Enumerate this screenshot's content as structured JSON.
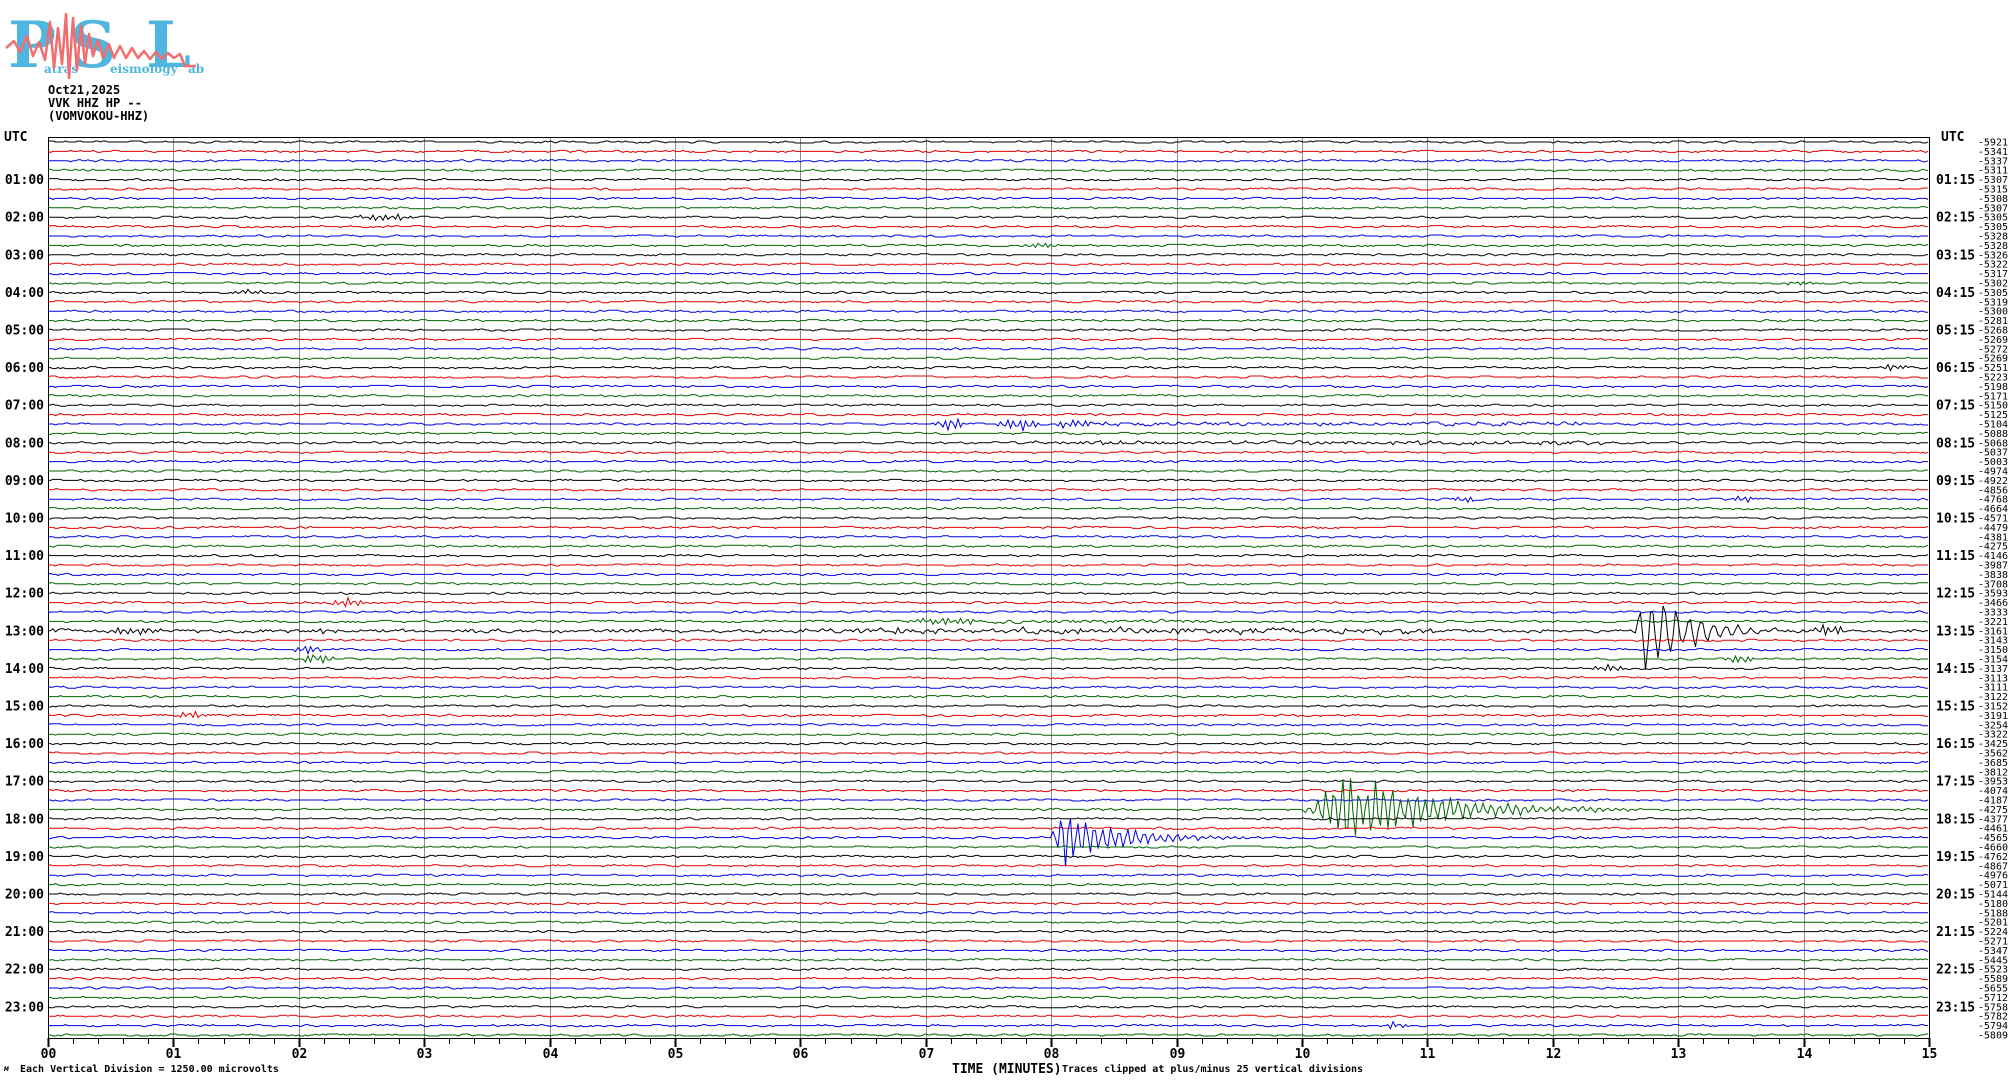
{
  "logo": {
    "p": "P",
    "p_suffix": "atras",
    "s": "S",
    "s_suffix": "eismology",
    "l": "L",
    "l_suffix": "ab"
  },
  "header": {
    "date": "Oct21,2025",
    "station": "VVK HHZ HP --",
    "station_name": "(VOMVOKOU-HHZ)"
  },
  "axes": {
    "utc": "UTC",
    "xlabel": "TIME (MINUTES)",
    "x_tick_labels": [
      "00",
      "01",
      "02",
      "03",
      "04",
      "05",
      "06",
      "07",
      "08",
      "09",
      "10",
      "11",
      "12",
      "13",
      "14",
      "15"
    ],
    "left_hour_labels": [
      "01:00",
      "02:00",
      "03:00",
      "04:00",
      "05:00",
      "06:00",
      "07:00",
      "08:00",
      "09:00",
      "10:00",
      "11:00",
      "12:00",
      "13:00",
      "14:00",
      "15:00",
      "16:00",
      "17:00",
      "18:00",
      "19:00",
      "20:00",
      "21:00",
      "22:00",
      "23:00"
    ],
    "right_hour_labels": [
      "01:15",
      "02:15",
      "03:15",
      "04:15",
      "05:15",
      "06:15",
      "07:15",
      "08:15",
      "09:15",
      "10:15",
      "11:15",
      "12:15",
      "13:15",
      "14:15",
      "15:15",
      "16:15",
      "17:15",
      "18:15",
      "19:15",
      "20:15",
      "21:15",
      "22:15",
      "23:15"
    ]
  },
  "footer": {
    "scale_note": "Each Vertical Division = 1250.00 microvolts",
    "clip_note": "Traces clipped at plus/minus 25 vertical divisions",
    "corner_mark": "м"
  },
  "chart_data": {
    "type": "line",
    "subtype": "helicorder",
    "title": "VVK HHZ HP -- (VOMVOKOU-HHZ) Oct21,2025",
    "xlabel": "TIME (MINUTES)",
    "x_range": [
      0,
      15
    ],
    "lines": 96,
    "minutes_per_line": 15,
    "line_start_utc_first": "00:00",
    "trace_colors_cycle": [
      "#000000",
      "#e60000",
      "#0000e6",
      "#006400"
    ],
    "grid_color": "#8c8c8c",
    "vertical_division_microvolts": 1250.0,
    "clip_divisions": 25,
    "offsets_microvolts": [
      -5921,
      -5341,
      -5337,
      -5311,
      -5307,
      -5315,
      -5308,
      -5307,
      -5305,
      -5305,
      -5328,
      -5328,
      -5326,
      -5322,
      -5317,
      -5302,
      -5305,
      -5319,
      -5300,
      -5281,
      -5268,
      -5269,
      -5272,
      -5269,
      -5251,
      -5223,
      -5198,
      -5171,
      -5150,
      -5125,
      -5104,
      -5088,
      -5068,
      -5037,
      -5003,
      -4974,
      -4922,
      -4856,
      -4768,
      -4664,
      -4571,
      -4479,
      -4381,
      -4275,
      -4146,
      -3987,
      -3838,
      -3708,
      -3593,
      -3466,
      -3333,
      -3221,
      -3161,
      -3143,
      -3150,
      -3154,
      -3137,
      -3113,
      -3111,
      -3122,
      -3152,
      -3191,
      -3254,
      -3322,
      -3425,
      -3562,
      -3685,
      -3812,
      -3953,
      -4074,
      -4187,
      -4275,
      -4377,
      -4461,
      -4565,
      -4660,
      -4762,
      -4867,
      -4976,
      -5071,
      -5144,
      -5180,
      -5188,
      -5201,
      -5224,
      -5271,
      -5347,
      -5445,
      -5523,
      -5589,
      -5655,
      -5712,
      -5758,
      -5782,
      -5794,
      -5809
    ],
    "events": [
      {
        "row": 8,
        "line_start_utc": "02:00",
        "kind": "burst",
        "t0": 2.45,
        "t1": 2.95,
        "amp": 4
      },
      {
        "row": 11,
        "line_start_utc": "02:45",
        "kind": "burst",
        "t0": 7.75,
        "t1": 8.1,
        "amp": 3
      },
      {
        "row": 15,
        "line_start_utc": "03:45",
        "kind": "burst",
        "t0": 13.85,
        "t1": 14.1,
        "amp": 3
      },
      {
        "row": 16,
        "line_start_utc": "04:00",
        "kind": "burst",
        "t0": 1.45,
        "t1": 1.75,
        "amp": 3
      },
      {
        "row": 24,
        "line_start_utc": "06:00",
        "kind": "burst",
        "t0": 14.6,
        "t1": 14.85,
        "amp": 3.5
      },
      {
        "row": 30,
        "line_start_utc": "07:30",
        "kind": "burst",
        "t0": 7.05,
        "t1": 7.35,
        "amp": 7
      },
      {
        "row": 30,
        "line_start_utc": "07:30",
        "kind": "burst",
        "t0": 7.55,
        "t1": 7.95,
        "amp": 8
      },
      {
        "row": 30,
        "line_start_utc": "07:30",
        "kind": "burst",
        "t0": 8.0,
        "t1": 8.35,
        "amp": 6
      },
      {
        "row": 30,
        "line_start_utc": "07:30",
        "kind": "elevated",
        "t0": 8.35,
        "t1": 12.3,
        "amp": 1.6
      },
      {
        "row": 32,
        "line_start_utc": "08:00",
        "kind": "elevated",
        "t0": 7.7,
        "t1": 12.4,
        "amp": 1.5
      },
      {
        "row": 38,
        "line_start_utc": "09:30",
        "kind": "burst",
        "t0": 11.2,
        "t1": 11.4,
        "amp": 3.5
      },
      {
        "row": 38,
        "line_start_utc": "09:30",
        "kind": "burst",
        "t0": 13.4,
        "t1": 13.62,
        "amp": 4
      },
      {
        "row": 49,
        "line_start_utc": "12:15",
        "kind": "burst",
        "t0": 2.25,
        "t1": 2.55,
        "amp": 5
      },
      {
        "row": 51,
        "line_start_utc": "12:45",
        "kind": "burst",
        "t0": 6.8,
        "t1": 7.5,
        "amp": 4
      },
      {
        "row": 51,
        "line_start_utc": "12:45",
        "kind": "elevated",
        "t0": 7.5,
        "t1": 9.2,
        "amp": 1.5
      },
      {
        "row": 52,
        "line_start_utc": "13:00",
        "kind": "elevated",
        "t0": 0,
        "t1": 15,
        "amp": 1.2
      },
      {
        "row": 52,
        "line_start_utc": "13:00",
        "kind": "burst",
        "t0": 0.45,
        "t1": 1.05,
        "amp": 4
      },
      {
        "row": 52,
        "line_start_utc": "13:00",
        "kind": "burst",
        "t0": 2.1,
        "t1": 2.4,
        "amp": 3
      },
      {
        "row": 52,
        "line_start_utc": "13:00",
        "kind": "elevated",
        "t0": 6.3,
        "t1": 11.2,
        "amp": 2.2
      },
      {
        "row": 52,
        "line_start_utc": "13:00",
        "kind": "quake",
        "t0": 12.62,
        "tp": 12.72,
        "t1": 13.9,
        "amp": 55,
        "freq": 40
      },
      {
        "row": 52,
        "line_start_utc": "13:00",
        "kind": "burst",
        "t0": 14.05,
        "t1": 14.35,
        "amp": 6
      },
      {
        "row": 54,
        "line_start_utc": "13:30",
        "kind": "burst",
        "t0": 1.95,
        "t1": 2.2,
        "amp": 5
      },
      {
        "row": 55,
        "line_start_utc": "13:45",
        "kind": "burst",
        "t0": 2.0,
        "t1": 2.3,
        "amp": 6
      },
      {
        "row": 55,
        "line_start_utc": "13:45",
        "kind": "burst",
        "t0": 13.35,
        "t1": 13.62,
        "amp": 5
      },
      {
        "row": 56,
        "line_start_utc": "14:00",
        "kind": "burst",
        "t0": 12.3,
        "t1": 12.58,
        "amp": 5
      },
      {
        "row": 61,
        "line_start_utc": "15:15",
        "kind": "burst",
        "t0": 1.0,
        "t1": 1.3,
        "amp": 4
      },
      {
        "row": 71,
        "line_start_utc": "17:45",
        "kind": "quake",
        "t0": 9.95,
        "tp": 10.3,
        "t1": 12.7,
        "amp": 45,
        "freq": 35
      },
      {
        "row": 74,
        "line_start_utc": "18:30",
        "kind": "quake",
        "t0": 7.95,
        "tp": 8.1,
        "t1": 9.6,
        "amp": 33,
        "freq": 35
      },
      {
        "row": 94,
        "line_start_utc": "23:30",
        "kind": "burst",
        "t0": 10.65,
        "t1": 10.85,
        "amp": 4
      }
    ],
    "logo_colors": {
      "blue": "#4fb6e0",
      "red": "#f26d6d"
    }
  }
}
